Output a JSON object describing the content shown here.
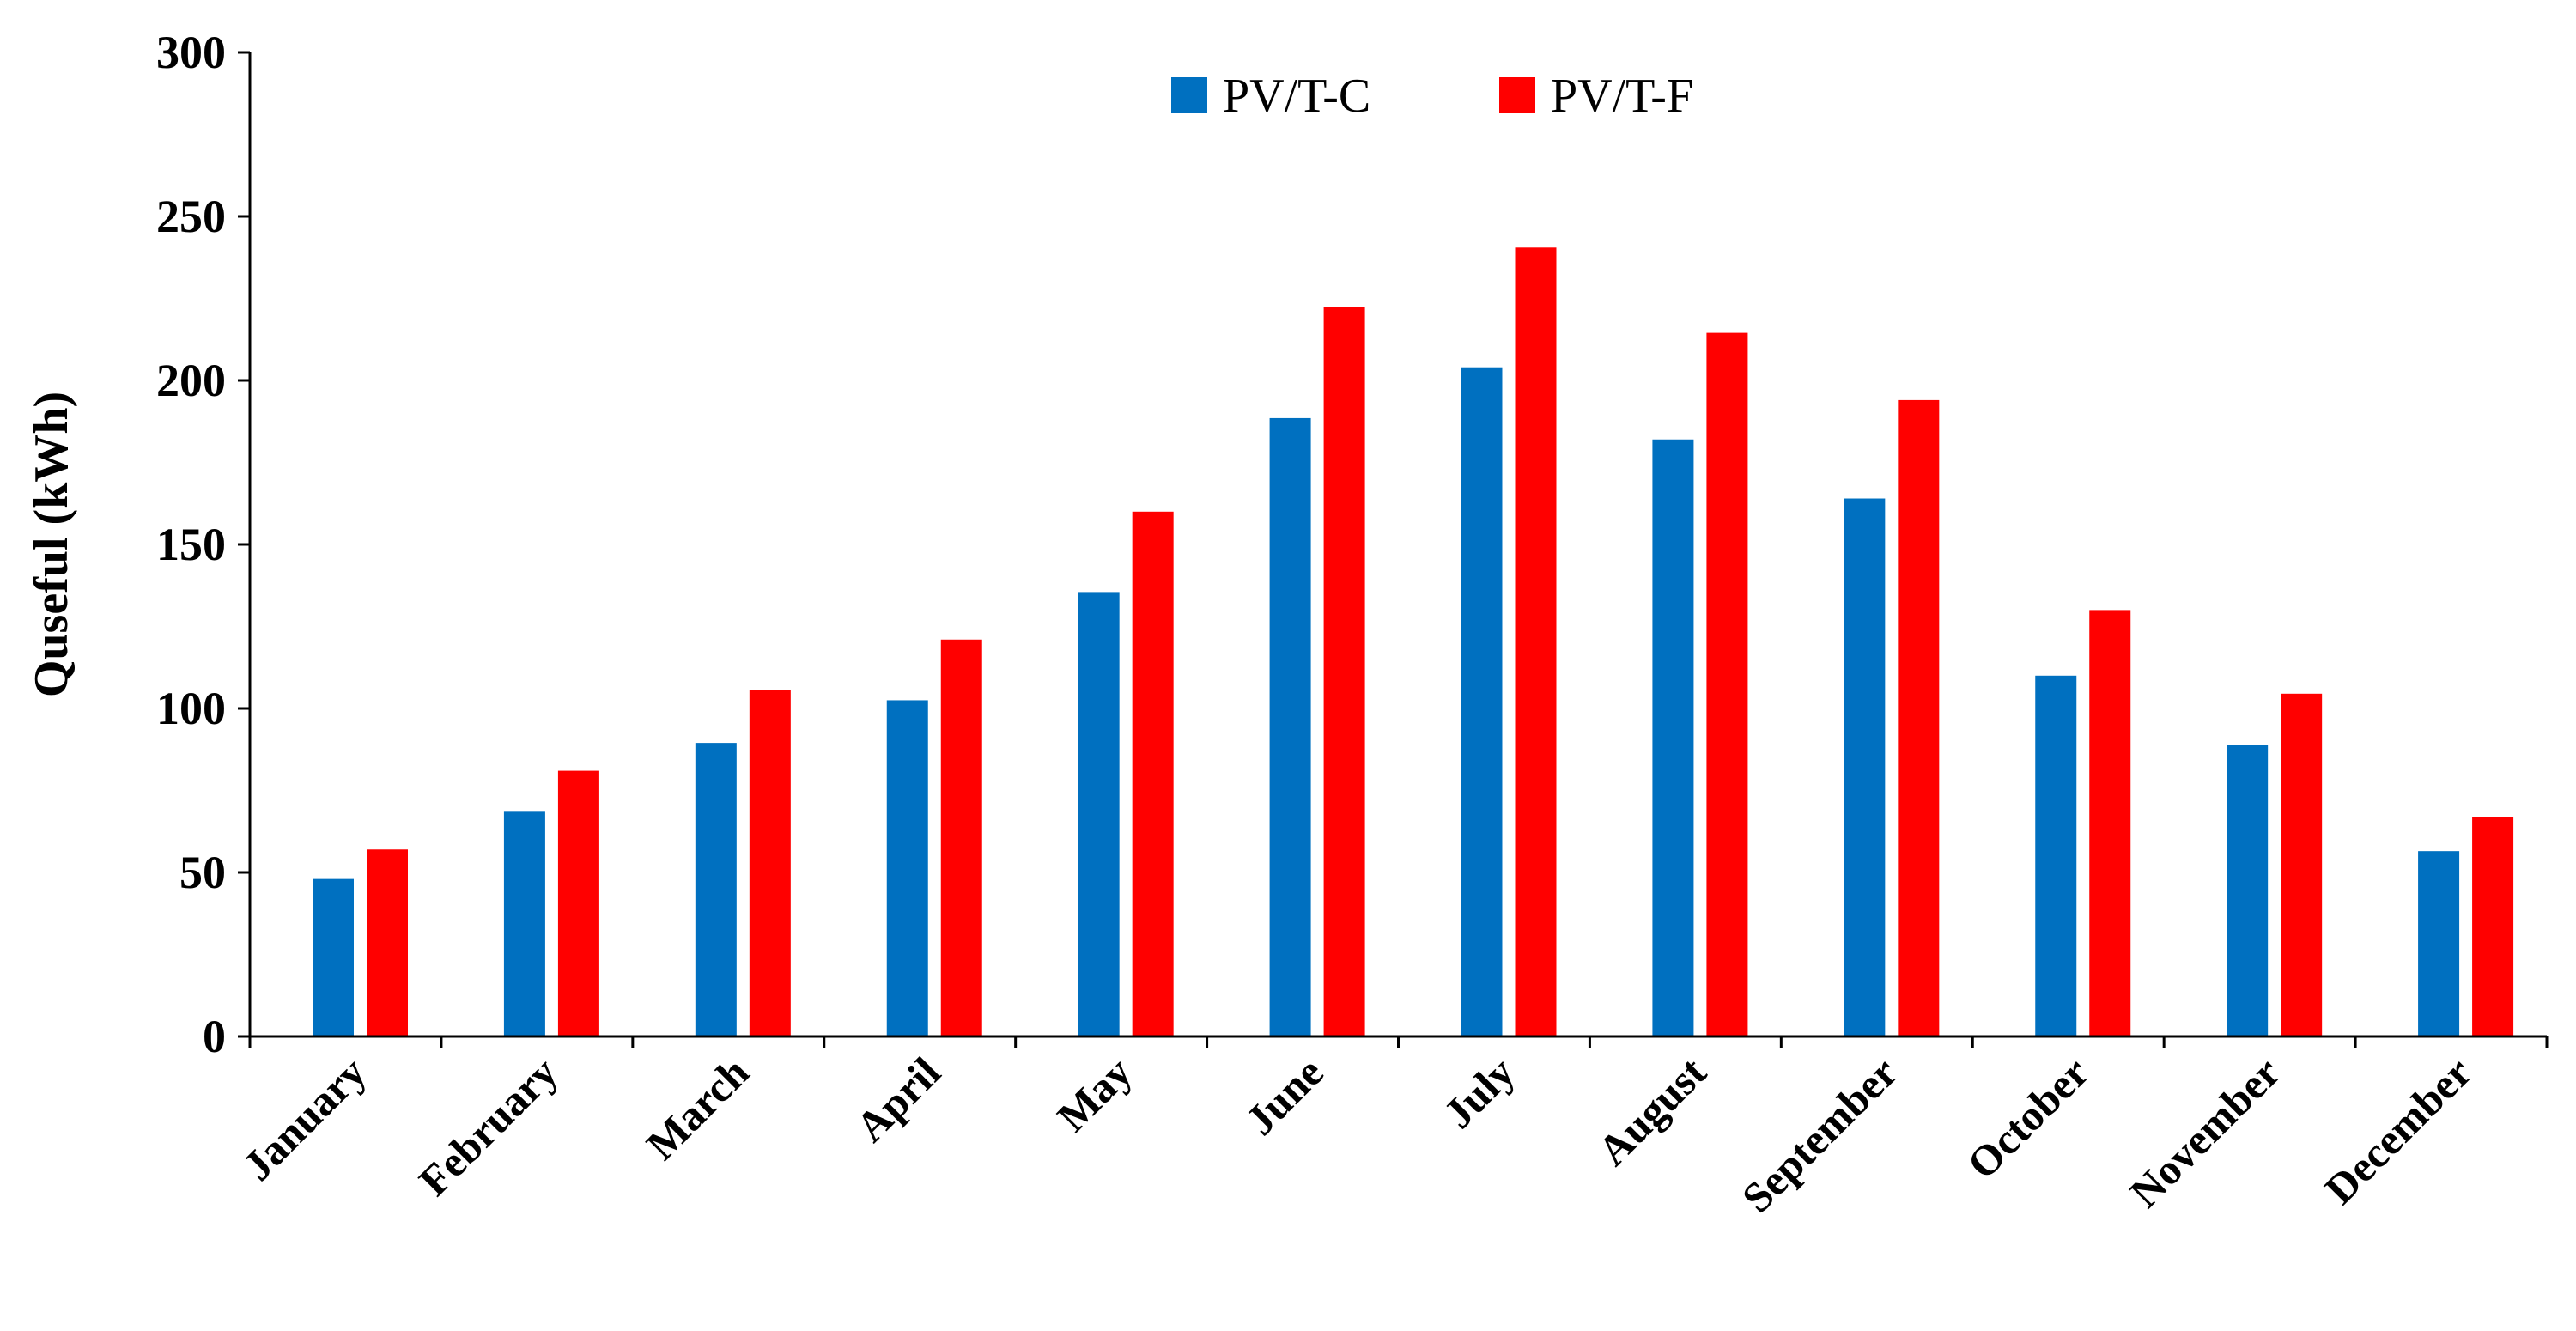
{
  "chart_data": {
    "type": "bar",
    "title": "",
    "xlabel": "",
    "ylabel": "Quseful (kWh)",
    "ylim": [
      0,
      300
    ],
    "yticks": [
      0,
      50,
      100,
      150,
      200,
      250,
      300
    ],
    "grid": false,
    "legend_position": "top-center",
    "categories": [
      "January",
      "February",
      "March",
      "April",
      "May",
      "June",
      "July",
      "August",
      "September",
      "October",
      "November",
      "December"
    ],
    "series": [
      {
        "name": "PV/T-C",
        "color": "#0070C0",
        "values": [
          48,
          68.5,
          89.5,
          102.5,
          135.5,
          188.5,
          204,
          182,
          164,
          110,
          89,
          56.5
        ]
      },
      {
        "name": "PV/T-F",
        "color": "#FF0000",
        "values": [
          57,
          81,
          105.5,
          121,
          160,
          222.5,
          240.5,
          214.5,
          194,
          130,
          104.5,
          67
        ]
      }
    ]
  }
}
